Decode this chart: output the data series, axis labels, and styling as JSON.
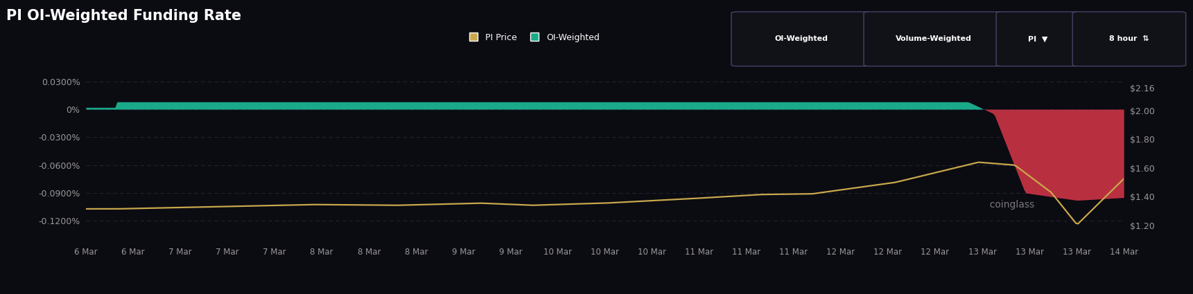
{
  "title": "PI OI-Weighted Funding Rate",
  "bg_color": "#0b0b12",
  "plot_bg_color": "#0b0b12",
  "label_color": "#999999",
  "grid_color": "#252535",
  "teal_color": "#1aaa8a",
  "red_color": "#b83040",
  "gold_color": "#c8a84b",
  "left_yticks": [
    0.0003,
    0.0,
    -0.0003,
    -0.0006,
    -0.0009,
    -0.0012
  ],
  "left_ytick_labels": [
    "0.0300%",
    "0%",
    "-0.0300%",
    "-0.0600%",
    "-0.0900%",
    "-0.1200%"
  ],
  "right_yticks": [
    2.16,
    2.0,
    1.8,
    1.6,
    1.4,
    1.2
  ],
  "right_ytick_labels": [
    "$2.16",
    "$2.00",
    "$1.80",
    "$1.60",
    "$1.40",
    "$1.20"
  ],
  "x_tick_labels": [
    "6 Mar",
    "6 Mar",
    "7 Mar",
    "7 Mar",
    "7 Mar",
    "8 Mar",
    "8 Mar",
    "8 Mar",
    "9 Mar",
    "9 Mar",
    "10 Mar",
    "10 Mar",
    "10 Mar",
    "11 Mar",
    "11 Mar",
    "11 Mar",
    "12 Mar",
    "12 Mar",
    "12 Mar",
    "13 Mar",
    "13 Mar",
    "13 Mar",
    "14 Mar"
  ],
  "n_points": 500,
  "ylim_left": [
    -0.00145,
    0.00048
  ],
  "ylim_right": [
    1.07,
    2.32
  ],
  "watermark": "coinglass"
}
